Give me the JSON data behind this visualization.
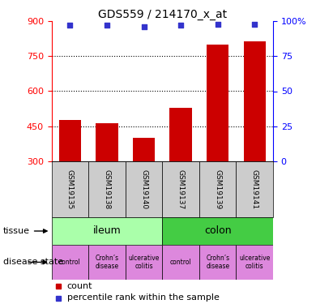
{
  "title": "GDS559 / 214170_x_at",
  "samples": [
    "GSM19135",
    "GSM19138",
    "GSM19140",
    "GSM19137",
    "GSM19139",
    "GSM19141"
  ],
  "counts": [
    475,
    462,
    400,
    530,
    800,
    815
  ],
  "percentiles": [
    97,
    97,
    96,
    97,
    98,
    98
  ],
  "ylim_left": [
    300,
    900
  ],
  "ylim_right": [
    0,
    100
  ],
  "yticks_left": [
    300,
    450,
    600,
    750,
    900
  ],
  "yticks_right": [
    0,
    25,
    50,
    75,
    100
  ],
  "bar_color": "#cc0000",
  "dot_color": "#3333cc",
  "tissue_ileum_color": "#aaffaa",
  "tissue_colon_color": "#44cc44",
  "disease_color": "#dd88dd",
  "sample_box_color": "#cccccc",
  "tissue_ileum_label": "ileum",
  "tissue_colon_label": "colon",
  "tissue_row_label": "tissue",
  "disease_row_label": "disease state",
  "disease_labels": [
    "control",
    "Crohn’s\ndisease",
    "ulcerative\ncolitis",
    "control",
    "Crohn’s\ndisease",
    "ulcerative\ncolitis"
  ],
  "legend_count_label": "count",
  "legend_pct_label": "percentile rank within the sample",
  "bar_width": 0.6
}
